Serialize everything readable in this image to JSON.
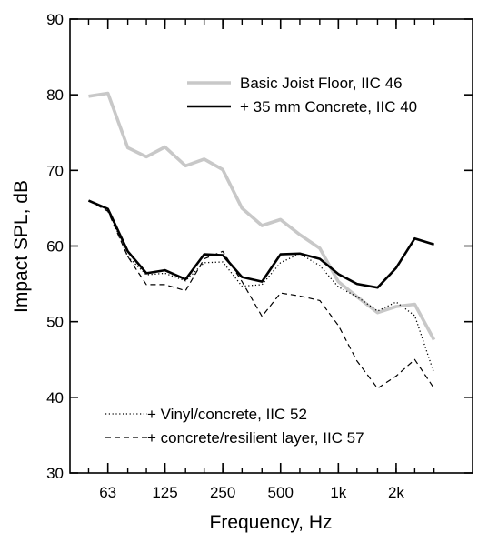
{
  "chart_data": {
    "type": "line",
    "title": "",
    "xlabel": "Frequency, Hz",
    "ylabel": "Impact SPL, dB",
    "ylim": [
      30,
      90
    ],
    "yticks": [
      30,
      40,
      50,
      60,
      70,
      80,
      90
    ],
    "x_scale": "log (one-third octave bands)",
    "xlim": [
      40,
      5000
    ],
    "xtick_labels": [
      "63",
      "125",
      "250",
      "500",
      "1k",
      "2k"
    ],
    "xtick_values": [
      63,
      125,
      250,
      500,
      1000,
      2000
    ],
    "x": [
      50,
      63,
      80,
      100,
      125,
      160,
      200,
      250,
      315,
      400,
      500,
      630,
      800,
      1000,
      1250,
      1600,
      2000,
      2500,
      3150
    ],
    "grid": false,
    "legend_placement": "top-right and bottom-left",
    "series": [
      {
        "name": "Basic Joist Floor, IIC 46",
        "style": "solid",
        "color": "#c8c8c8",
        "values": [
          79.8,
          80.2,
          73.0,
          71.8,
          73.1,
          70.6,
          71.5,
          70.1,
          65.0,
          62.7,
          63.5,
          61.5,
          59.7,
          55.3,
          53.3,
          51.2,
          52.0,
          52.3,
          47.6
        ]
      },
      {
        "name": "+ 35 mm Concrete, IIC 40",
        "style": "solid",
        "color": "#000000",
        "values": [
          66.0,
          64.9,
          59.3,
          56.4,
          56.8,
          55.6,
          58.9,
          58.8,
          55.9,
          55.3,
          58.9,
          59.0,
          58.3,
          56.3,
          55.0,
          54.5,
          57.1,
          61.0,
          60.2
        ]
      },
      {
        "name": "+ Vinyl/concrete, IIC  52",
        "style": "dotted",
        "color": "#000000",
        "values": [
          66.0,
          64.9,
          58.6,
          56.2,
          56.4,
          55.4,
          57.8,
          57.9,
          54.7,
          54.9,
          57.8,
          59.0,
          57.4,
          54.6,
          53.3,
          51.4,
          52.6,
          50.8,
          43.2
        ]
      },
      {
        "name": "+ concrete/resilient layer, IIC 57",
        "style": "dashed",
        "color": "#000000",
        "values": [
          66.0,
          64.6,
          58.6,
          54.9,
          54.9,
          54.1,
          58.3,
          59.3,
          55.3,
          50.7,
          53.8,
          53.4,
          52.8,
          49.5,
          44.8,
          41.2,
          42.8,
          45.0,
          41.2
        ]
      }
    ]
  }
}
